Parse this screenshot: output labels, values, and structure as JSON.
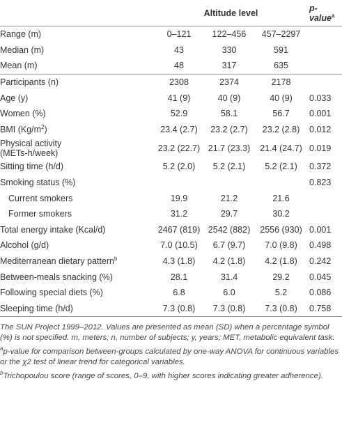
{
  "table": {
    "header": {
      "group": "Altitude level",
      "p_label": "p-value",
      "p_sup": "a"
    },
    "sections": [
      {
        "rows": [
          {
            "label": "Range (m)",
            "cells": [
              "0–121",
              "122–456",
              "457–2297"
            ]
          },
          {
            "label": "Median (m)",
            "cells": [
              "43",
              "330",
              "591"
            ]
          },
          {
            "label": "Mean (m)",
            "cells": [
              "48",
              "317",
              "635"
            ]
          }
        ]
      },
      {
        "rows": [
          {
            "label": "Participants (n)",
            "cells": [
              "2308",
              "2374",
              "2178"
            ]
          },
          {
            "label": "Age (y)",
            "cells": [
              "41 (9)",
              "40 (9)",
              "40 (9)"
            ],
            "p": "0.033"
          },
          {
            "label": "Women (%)",
            "cells": [
              "52.9",
              "58.1",
              "56.7"
            ],
            "p": "0.001"
          },
          {
            "label": "BMI (Kg/m",
            "label_sup": "2",
            "label_after": ")",
            "cells": [
              "23.4 (2.7)",
              "23.2 (2.7)",
              "23.2 (2.8)"
            ],
            "p": "0.012"
          },
          {
            "label": "Physical activity",
            "label_line2": "(METs-h/week)",
            "cells": [
              "23.2 (22.7)",
              "21.7 (23.3)",
              "21.4 (24.7)"
            ],
            "p": "0.019"
          },
          {
            "label": "Sitting time (h/d)",
            "cells": [
              "5.2 (2.0)",
              "5.2 (2.1)",
              "5.2 (2.1)"
            ],
            "p": "0.372"
          },
          {
            "label": "Smoking status (%)",
            "p": "0.823",
            "subrows": [
              {
                "label": "Current smokers",
                "cells": [
                  "19.9",
                  "21.2",
                  "21.6"
                ]
              },
              {
                "label": "Former smokers",
                "cells": [
                  "31.2",
                  "29.7",
                  "30.2"
                ]
              }
            ]
          },
          {
            "label": "Total energy intake (Kcal/d)",
            "cells": [
              "2467 (819)",
              "2542 (882)",
              "2556 (930)"
            ],
            "p": "0.001"
          },
          {
            "label": "Alcohol (g/d)",
            "cells": [
              "7.0 (10.5)",
              "6.7 (9.7)",
              "7.0 (9.8)"
            ],
            "p": "0.498"
          },
          {
            "label": "Mediterranean dietary pattern",
            "label_sup": "b",
            "cells": [
              "4.3 (1.8)",
              "4.2 (1.8)",
              "4.2 (1.8)"
            ],
            "p": "0.242"
          },
          {
            "label": "Between-meals snacking (%)",
            "cells": [
              "28.1",
              "31.4",
              "29.2"
            ],
            "p": "0.045"
          },
          {
            "label": "Following special diets (%)",
            "cells": [
              "6.8",
              "6.0",
              "5.2"
            ],
            "p": "0.086"
          },
          {
            "label": "Sleeping time (h/d)",
            "cells": [
              "7.3 (0.8)",
              "7.3 (0.8)",
              "7.3 (0.8)"
            ],
            "p": "0.758"
          }
        ]
      }
    ]
  },
  "notes": [
    {
      "text": "The SUN Project 1999–2012. Values are presented as mean (SD) when a percentage symbol (%) is not specified. m, meters; n, number of subjects; y, years; MET, metabolic equivalent task."
    },
    {
      "sup": "a",
      "text": "p-value for comparison between-groups calculated by one-way ANOVA for continuous variables or the χ2 test of linear trend for categorical variables."
    },
    {
      "sup": "b",
      "text": "Trichopoulou score (range of scores, 0–9, with higher scores indicating greater adherence)."
    }
  ]
}
